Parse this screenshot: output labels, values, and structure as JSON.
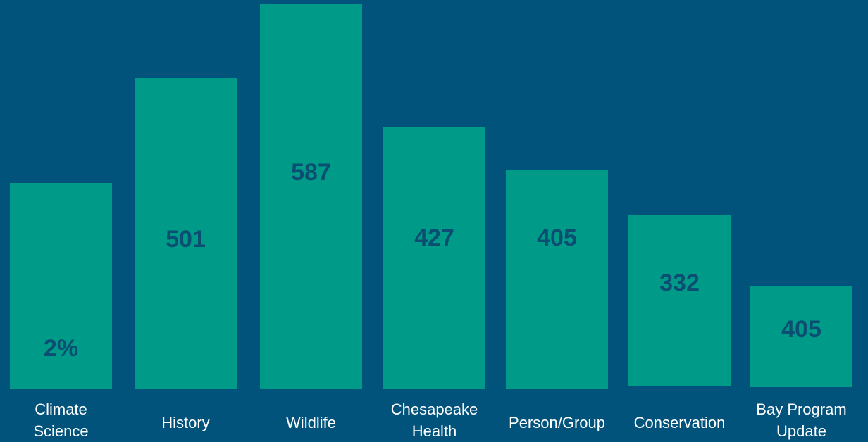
{
  "bars": [
    {
      "label": [
        "Climate",
        "Science"
      ],
      "value": "2%"
    },
    {
      "label": [
        "History"
      ],
      "value": "501"
    },
    {
      "label": [
        "Wildlife"
      ],
      "value": "587"
    },
    {
      "label": [
        "Chesapeake",
        "Health"
      ],
      "value": "427"
    },
    {
      "label": [
        "Person/Group"
      ],
      "value": "405"
    },
    {
      "label": [
        "Conservation"
      ],
      "value": "332"
    },
    {
      "label": [
        "Bay Program",
        "Update"
      ],
      "value": "405"
    }
  ]
}
